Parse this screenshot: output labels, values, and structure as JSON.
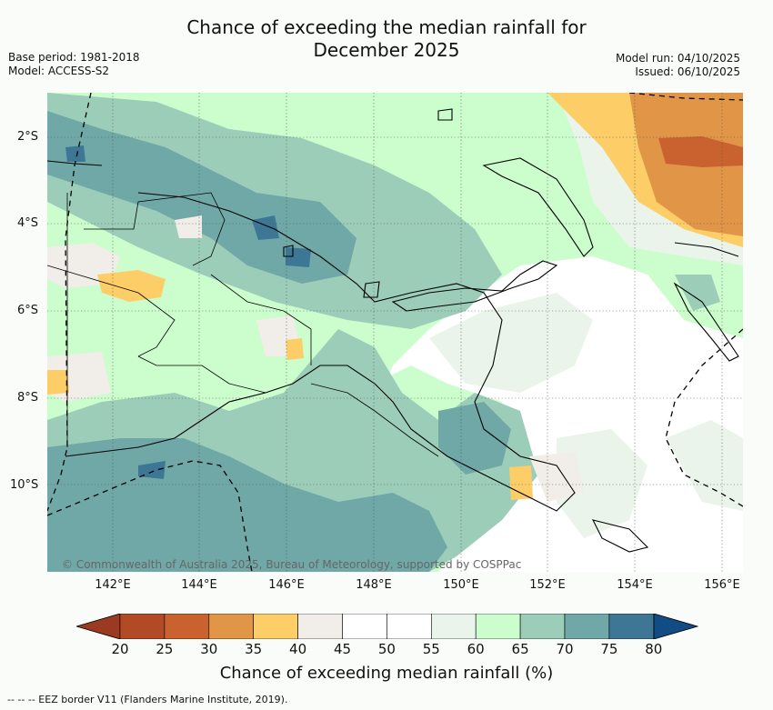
{
  "title": {
    "line1": "Chance of exceeding the median rainfall for",
    "line2": "December 2025"
  },
  "meta": {
    "base_period": "Base period: 1981-2018",
    "model": "Model: ACCESS-S2",
    "model_run": "Model run: 04/10/2025",
    "issued": "Issued: 06/10/2025"
  },
  "axes": {
    "lat_labels": [
      "2°S",
      "4°S",
      "6°S",
      "8°S",
      "10°S"
    ],
    "lon_labels": [
      "142°E",
      "144°E",
      "146°E",
      "148°E",
      "150°E",
      "152°E",
      "154°E",
      "156°E"
    ]
  },
  "colorbar": {
    "ticks": [
      "20",
      "25",
      "30",
      "35",
      "40",
      "45",
      "50",
      "55",
      "60",
      "65",
      "70",
      "75",
      "80"
    ],
    "colors": [
      "#b24a26",
      "#c9622f",
      "#e09547",
      "#fdcd68",
      "#f1ede8",
      "#ffffff",
      "#ffffff",
      "#eaf4ea",
      "#ccfdcc",
      "#9ccdb9",
      "#6fa8a6",
      "#3e7796"
    ],
    "under_color": "#9a3a20",
    "over_color": "#114c84",
    "label": "Chance of exceeding median rainfall (%)"
  },
  "copyright": "© Commonwealth of Australia 2025, Bureau of Meteorology, supported by COSPPac",
  "footer": "--  --  -- EEZ border V11 (Flanders Marine Institute, 2019)."
}
